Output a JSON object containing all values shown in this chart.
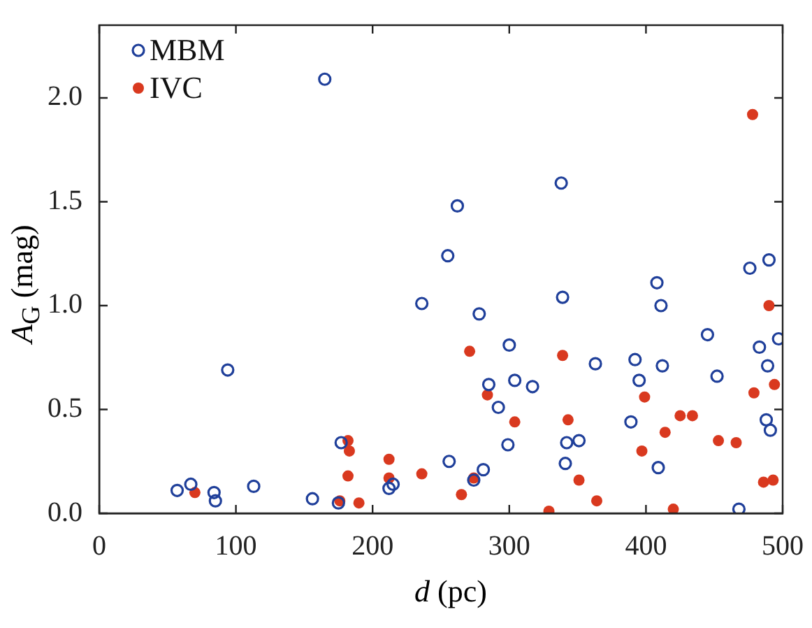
{
  "chart_data": {
    "type": "scatter",
    "xlabel": "d (pc)",
    "ylabel": "A$_{G}$ (mag)",
    "xlim": [
      0,
      500
    ],
    "xticks": [
      0,
      100,
      200,
      300,
      400,
      500
    ],
    "ylim": [
      0,
      2.35
    ],
    "yticks": [
      {
        "value": 0,
        "label": "0.0"
      },
      {
        "value": 0.5,
        "label": "0.5"
      },
      {
        "value": 1,
        "label": "1.0"
      },
      {
        "value": 1.5,
        "label": "1.5"
      },
      {
        "value": 2,
        "label": "2.0"
      }
    ],
    "grid": false,
    "legend": "top left",
    "marker": "circle",
    "series": [
      {
        "name": "MBM",
        "color": "#1f3f9a",
        "x": [
          57,
          67,
          84,
          85,
          94,
          113,
          156,
          165,
          175,
          177,
          212,
          215,
          236,
          255,
          256,
          262,
          274,
          278,
          281,
          285,
          292,
          299,
          300,
          304,
          317,
          338,
          339,
          341,
          342,
          351,
          363,
          389,
          392,
          395,
          408,
          409,
          411,
          412,
          445,
          452,
          468,
          476,
          483,
          488,
          489,
          490,
          491,
          497
        ],
        "values": [
          0.11,
          0.14,
          0.1,
          0.06,
          0.69,
          0.13,
          0.07,
          2.09,
          0.05,
          0.34,
          0.12,
          0.14,
          1.01,
          1.24,
          0.25,
          1.48,
          0.16,
          0.96,
          0.21,
          0.62,
          0.51,
          0.33,
          0.81,
          0.64,
          0.61,
          1.59,
          1.04,
          0.24,
          0.34,
          0.35,
          0.72,
          0.44,
          0.74,
          0.64,
          1.11,
          0.22,
          1.0,
          0.71,
          0.86,
          0.66,
          0.02,
          1.18,
          0.8,
          0.45,
          0.71,
          1.22,
          0.4,
          0.84
        ]
      },
      {
        "name": "IVC",
        "color": "#d9391f",
        "x": [
          70,
          176,
          182,
          183,
          182,
          190,
          212,
          212,
          236,
          265,
          271,
          274,
          284,
          304,
          329,
          339,
          343,
          351,
          364,
          397,
          399,
          414,
          420,
          425,
          434,
          453,
          466,
          478,
          479,
          486,
          490,
          493,
          494
        ],
        "values": [
          0.1,
          0.06,
          0.35,
          0.3,
          0.18,
          0.05,
          0.26,
          0.17,
          0.19,
          0.09,
          0.78,
          0.17,
          0.57,
          0.44,
          0.01,
          0.76,
          0.45,
          0.16,
          0.06,
          0.3,
          0.56,
          0.39,
          0.02,
          0.47,
          0.47,
          0.35,
          0.34,
          1.92,
          0.58,
          0.15,
          1.0,
          0.16,
          0.62
        ]
      }
    ]
  }
}
